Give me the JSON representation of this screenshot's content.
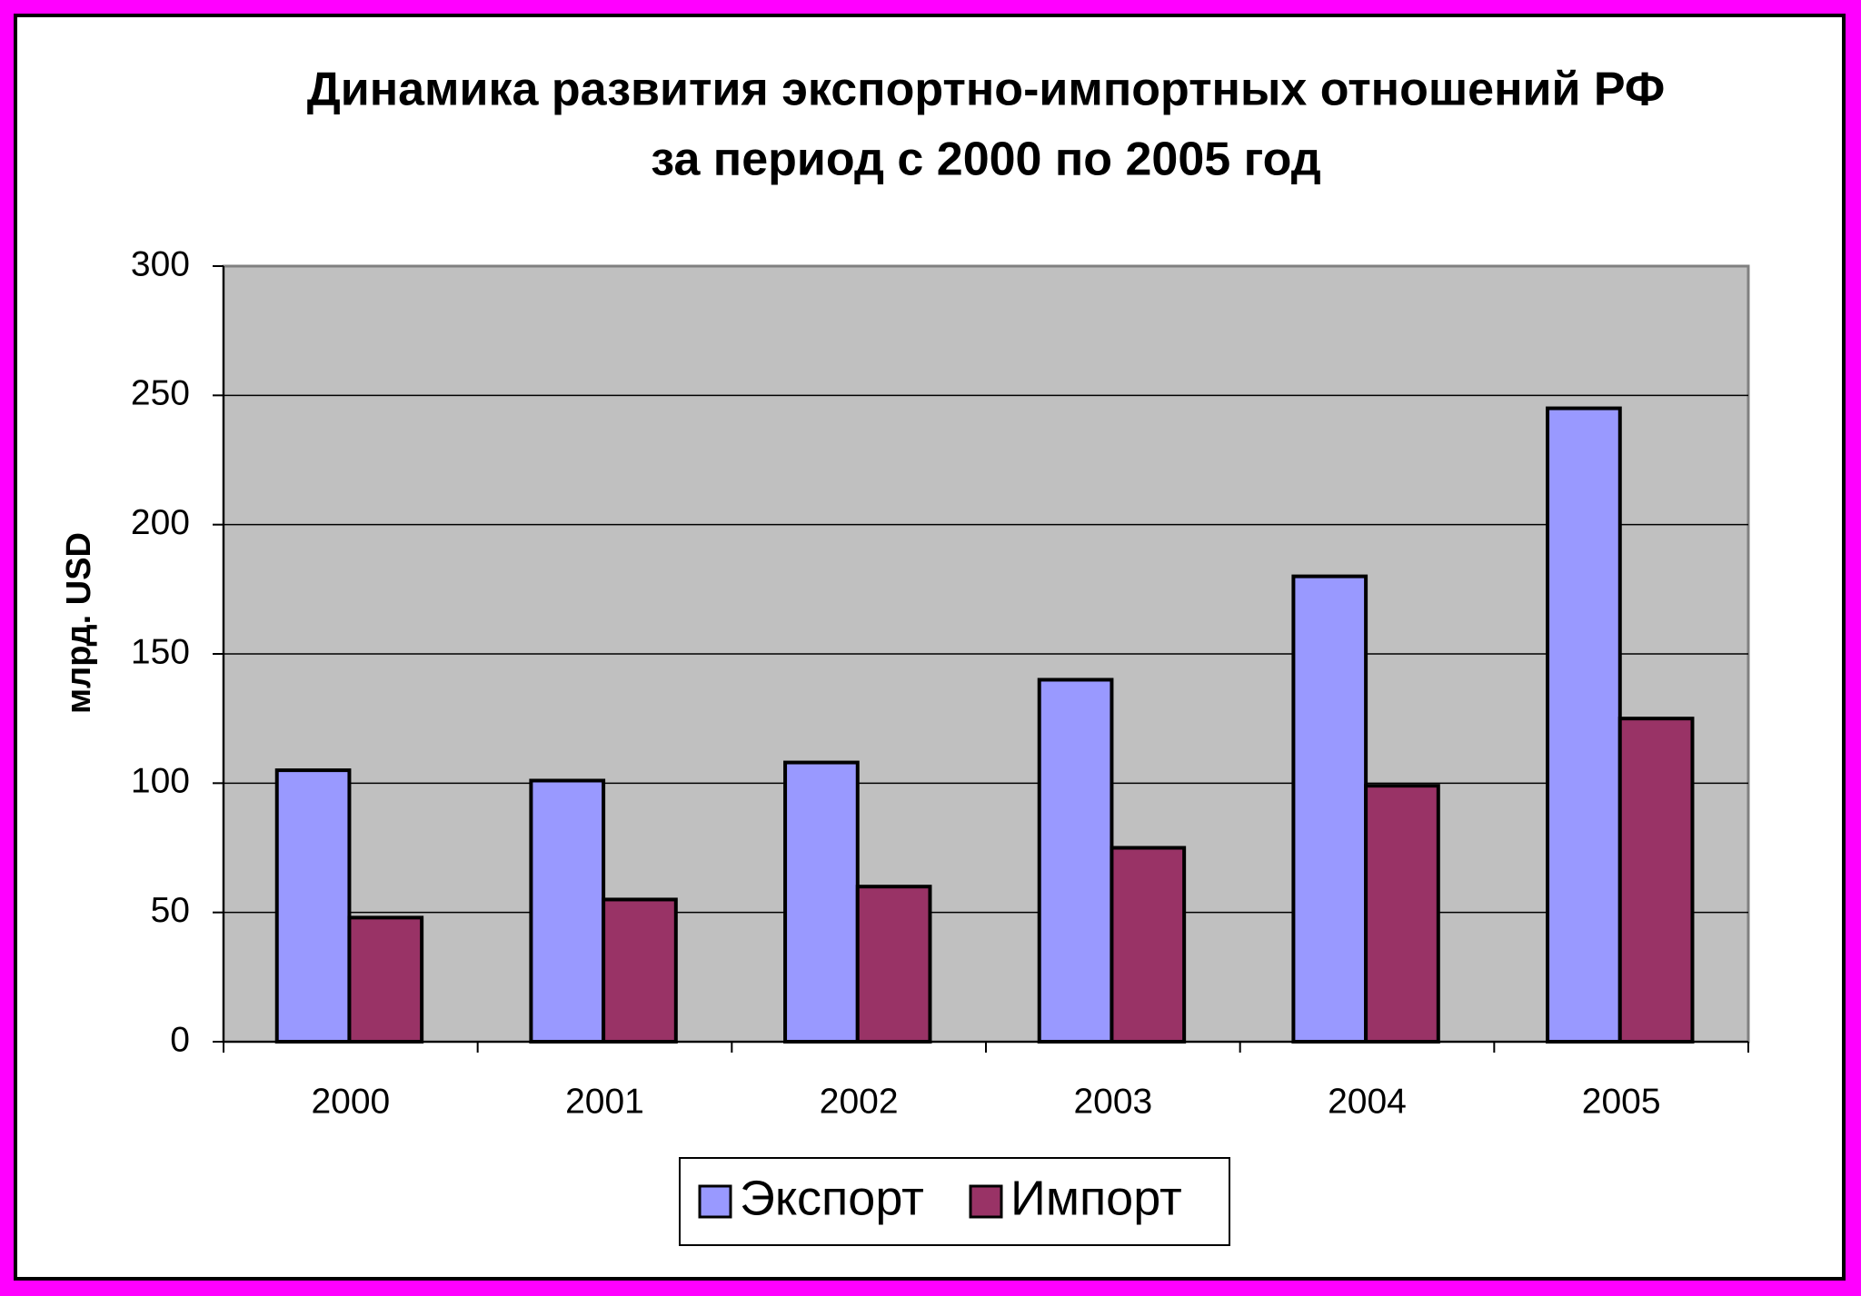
{
  "chart_data": {
    "type": "bar",
    "title": [
      "Динамика развития экспортно-импортных отношений РФ",
      "за период с 2000 по 2005 год"
    ],
    "y_label": "млрд. USD",
    "categories": [
      "2000",
      "2001",
      "2002",
      "2003",
      "2004",
      "2005"
    ],
    "series": [
      {
        "name": "Экспорт",
        "color": "#9999ff",
        "values": [
          105,
          101,
          108,
          140,
          180,
          245
        ]
      },
      {
        "name": "Импорт",
        "color": "#993366",
        "values": [
          48,
          55,
          60,
          75,
          99,
          125
        ]
      }
    ],
    "ylim": [
      0,
      300
    ],
    "yticks": [
      0,
      50,
      100,
      150,
      200,
      250,
      300
    ],
    "grid": true,
    "legend": "bottom"
  }
}
